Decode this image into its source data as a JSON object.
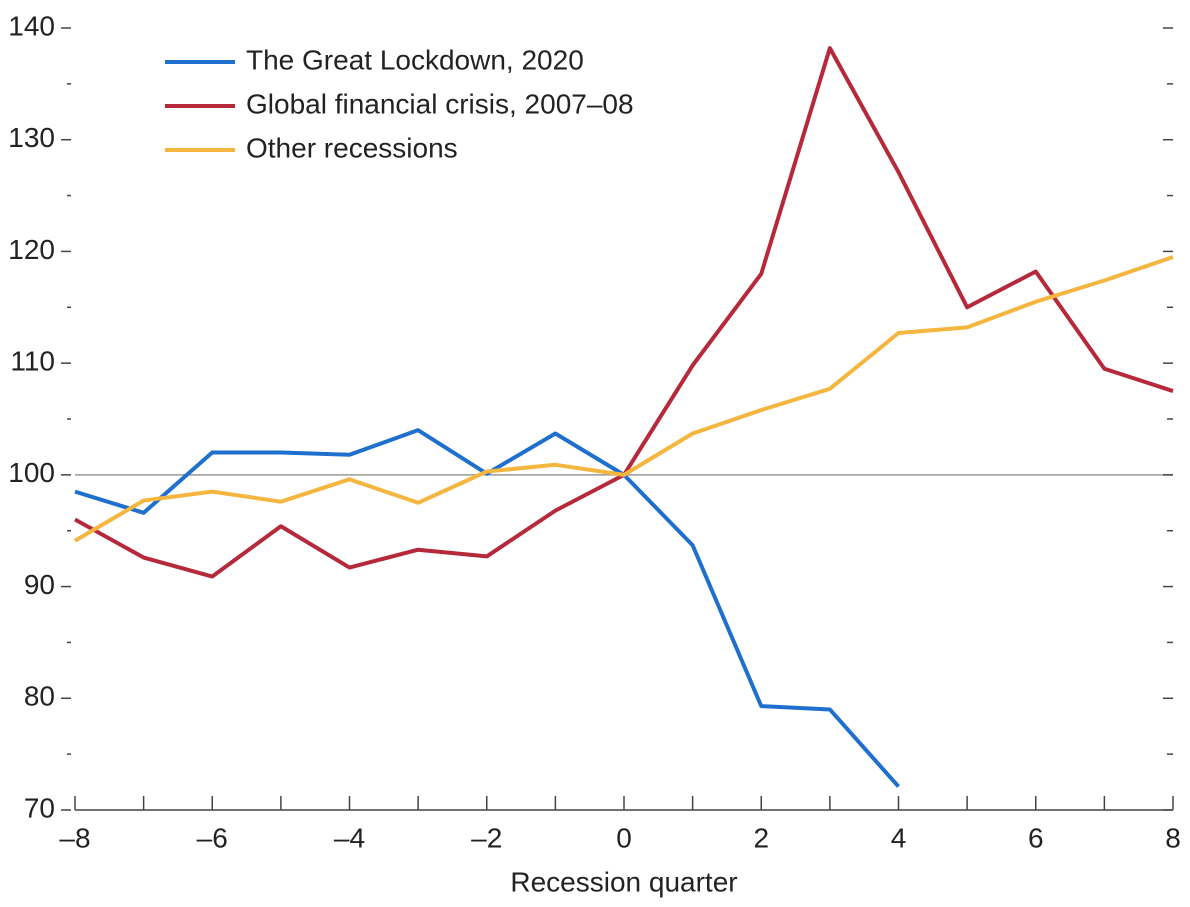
{
  "chart_data": {
    "type": "line",
    "x": [
      -8,
      -7,
      -6,
      -5,
      -4,
      -3,
      -2,
      -1,
      0,
      1,
      2,
      3,
      4,
      5,
      6,
      7,
      8
    ],
    "series": [
      {
        "name": "The Great Lockdown, 2020",
        "color": "#1f6fcf",
        "values": [
          98.5,
          96.6,
          102.0,
          102.0,
          101.8,
          104.0,
          100.1,
          103.7,
          100,
          93.7,
          79.3,
          79.0,
          72.1,
          null,
          null,
          null,
          null
        ]
      },
      {
        "name": "Global financial crisis, 2007–08",
        "color": "#b5293a",
        "values": [
          96.0,
          92.6,
          90.9,
          95.4,
          91.7,
          93.3,
          92.7,
          96.8,
          100,
          109.8,
          118.0,
          138.2,
          127.1,
          115.0,
          118.2,
          109.5,
          107.5
        ]
      },
      {
        "name": "Other recessions",
        "color": "#f4b63e",
        "values": [
          94.1,
          97.7,
          98.5,
          97.6,
          99.6,
          97.5,
          100.3,
          100.9,
          100,
          103.7,
          105.8,
          107.7,
          112.7,
          113.2,
          115.5,
          117.4,
          119.5
        ]
      }
    ],
    "xlabel": "Recession quarter",
    "xlim": [
      -8,
      8
    ],
    "xticks": [
      {
        "value": -8,
        "label": "–8"
      },
      {
        "value": -6,
        "label": "–6"
      },
      {
        "value": -4,
        "label": "–4"
      },
      {
        "value": -2,
        "label": "–2"
      },
      0,
      2,
      4,
      6,
      8
    ],
    "xticks_minor": [
      -7,
      -5,
      -3,
      -1,
      1,
      3,
      5,
      7
    ],
    "ylim": [
      70,
      140
    ],
    "yticks": [
      70,
      80,
      90,
      100,
      110,
      120,
      130,
      140
    ],
    "yticks_minor": [
      75,
      85,
      95,
      105,
      115,
      125,
      135
    ],
    "hline": 100,
    "legend": "upper left"
  }
}
